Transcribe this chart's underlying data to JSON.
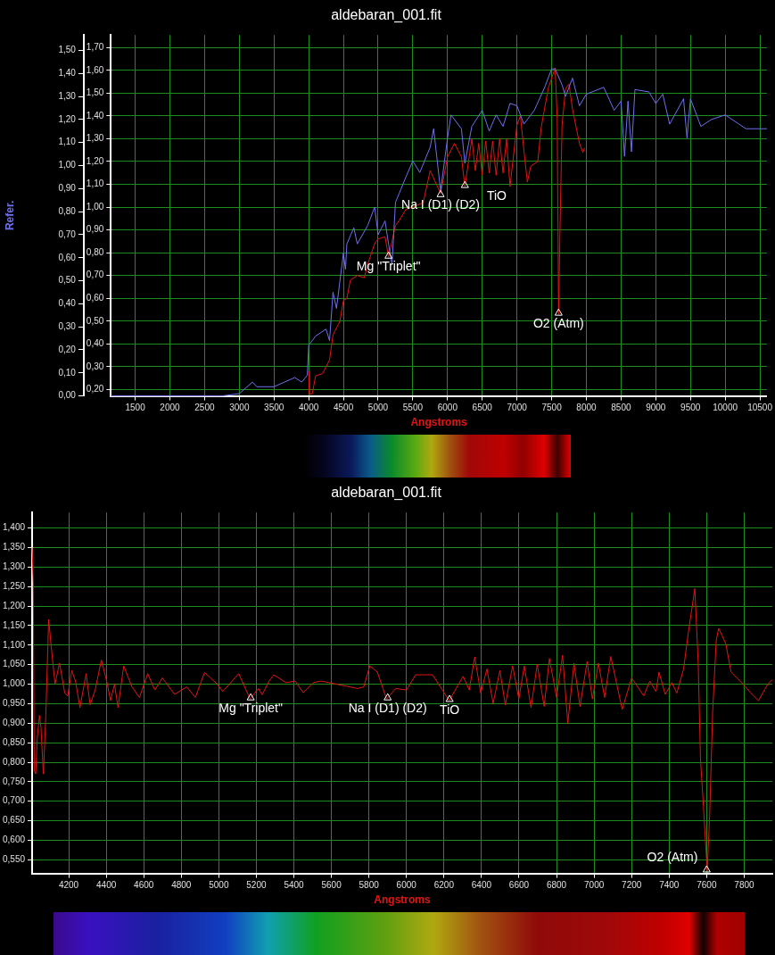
{
  "chart_data": [
    {
      "type": "line",
      "title": "aldebaran_001.fit",
      "xlabel": "Angstroms",
      "y2label": "Refer.",
      "grid": true,
      "xlim": [
        1150,
        10600
      ],
      "xticks": [
        1500,
        2000,
        2500,
        3000,
        3500,
        4000,
        4500,
        5000,
        5500,
        6000,
        6500,
        7000,
        7500,
        8000,
        8500,
        9000,
        9500,
        10000,
        10500
      ],
      "ylim": [
        0.172,
        1.755
      ],
      "yticks": [
        {
          "value": 0.2,
          "label": "0,20"
        },
        {
          "value": 0.3,
          "label": "0,30"
        },
        {
          "value": 0.4,
          "label": "0,40"
        },
        {
          "value": 0.5,
          "label": "0,50"
        },
        {
          "value": 0.6,
          "label": "0,60"
        },
        {
          "value": 0.7,
          "label": "0,70"
        },
        {
          "value": 0.8,
          "label": "0,80"
        },
        {
          "value": 0.9,
          "label": "0,90"
        },
        {
          "value": 1.0,
          "label": "1,00"
        },
        {
          "value": 1.1,
          "label": "1,10"
        },
        {
          "value": 1.2,
          "label": "1,20"
        },
        {
          "value": 1.3,
          "label": "1,30"
        },
        {
          "value": 1.4,
          "label": "1,40"
        },
        {
          "value": 1.5,
          "label": "1,50"
        },
        {
          "value": 1.6,
          "label": "1,60"
        },
        {
          "value": 1.7,
          "label": "1,70"
        }
      ],
      "y2lim": [
        0,
        1.567
      ],
      "y2ticks": [
        {
          "value": 0,
          "label": "0,00"
        },
        {
          "value": 0.1,
          "label": "0,10"
        },
        {
          "value": 0.2,
          "label": "0,20"
        },
        {
          "value": 0.3,
          "label": "0,30"
        },
        {
          "value": 0.4,
          "label": "0,40"
        },
        {
          "value": 0.5,
          "label": "0,50"
        },
        {
          "value": 0.6,
          "label": "0,60"
        },
        {
          "value": 0.7,
          "label": "0,70"
        },
        {
          "value": 0.8,
          "label": "0,80"
        },
        {
          "value": 0.9,
          "label": "0,90"
        },
        {
          "value": 1.0,
          "label": "1,00"
        },
        {
          "value": 1.1,
          "label": "1,10"
        },
        {
          "value": 1.2,
          "label": "1,20"
        },
        {
          "value": 1.3,
          "label": "1,30"
        },
        {
          "value": 1.4,
          "label": "1,40"
        },
        {
          "value": 1.5,
          "label": "1,50"
        }
      ],
      "series": [
        {
          "color": "#6f70f0",
          "axis": "y2",
          "x": [
            1150,
            2750,
            3000,
            3190,
            3250,
            3500,
            3650,
            3800,
            3900,
            3980,
            4000,
            4100,
            4250,
            4300,
            4350,
            4400,
            4500,
            4530,
            4550,
            4650,
            4700,
            4850,
            4950,
            5000,
            5100,
            5150,
            5200,
            5250,
            5400,
            5500,
            5600,
            5750,
            5800,
            5900,
            6000,
            6050,
            6200,
            6250,
            6350,
            6500,
            6600,
            6700,
            6800,
            6900,
            7000,
            7100,
            7250,
            7400,
            7500,
            7550,
            7650,
            7700,
            7800,
            7900,
            8000,
            8250,
            8400,
            8500,
            8550,
            8600,
            8650,
            8700,
            8900,
            9000,
            9100,
            9200,
            9400,
            9450,
            9500,
            9650,
            9800,
            10000,
            10200,
            10300,
            10600
          ],
          "values": [
            0.0,
            0.0,
            0.01,
            0.06,
            0.04,
            0.04,
            0.06,
            0.08,
            0.06,
            0.09,
            0.22,
            0.26,
            0.29,
            0.24,
            0.45,
            0.38,
            0.62,
            0.55,
            0.66,
            0.73,
            0.66,
            0.74,
            0.82,
            0.7,
            0.76,
            0.66,
            0.57,
            0.84,
            0.95,
            1.02,
            0.97,
            1.08,
            1.16,
            0.89,
            1.12,
            1.22,
            1.16,
            1.01,
            1.17,
            1.24,
            1.15,
            1.22,
            1.17,
            1.27,
            1.26,
            1.18,
            1.24,
            1.34,
            1.42,
            1.42,
            1.35,
            1.3,
            1.38,
            1.26,
            1.31,
            1.34,
            1.24,
            1.28,
            1.04,
            1.28,
            1.06,
            1.33,
            1.32,
            1.27,
            1.31,
            1.18,
            1.29,
            1.12,
            1.29,
            1.17,
            1.2,
            1.22,
            1.18,
            1.16,
            1.16
          ]
        },
        {
          "color": "#e01515",
          "x": [
            4000,
            4010,
            4050,
            4100,
            4200,
            4300,
            4350,
            4450,
            4500,
            4550,
            4600,
            4700,
            4800,
            4850,
            4950,
            5000,
            5100,
            5150,
            5250,
            5300,
            5400,
            5500,
            5650,
            5750,
            5900,
            6000,
            6100,
            6200,
            6250,
            6350,
            6400,
            6450,
            6500,
            6550,
            6600,
            6650,
            6700,
            6750,
            6800,
            6850,
            6900,
            7000,
            7050,
            7100,
            7150,
            7200,
            7300,
            7350,
            7450,
            7550,
            7580,
            7600,
            7620,
            7650,
            7700,
            7750,
            7800,
            7900,
            7950,
            7975
          ],
          "values": [
            0.28,
            0.18,
            0.18,
            0.26,
            0.27,
            0.33,
            0.44,
            0.5,
            0.59,
            0.6,
            0.68,
            0.7,
            0.69,
            0.75,
            0.84,
            0.86,
            0.87,
            0.78,
            0.92,
            0.94,
            0.99,
            1.0,
            1.02,
            1.16,
            1.06,
            1.22,
            1.28,
            1.22,
            1.09,
            1.3,
            1.16,
            1.28,
            1.14,
            1.29,
            1.15,
            1.29,
            1.14,
            1.3,
            1.15,
            1.3,
            1.09,
            1.36,
            1.4,
            1.25,
            1.11,
            1.18,
            1.2,
            1.35,
            1.52,
            1.61,
            1.39,
            0.53,
            0.9,
            1.36,
            1.52,
            1.54,
            1.43,
            1.28,
            1.24,
            1.26
          ]
        }
      ],
      "annotations": [
        {
          "text": "Mg \"Triplet\"",
          "x": 5150,
          "y": 0.78
        },
        {
          "text": "Na I (D1) (D2)",
          "x": 5900,
          "y": 1.05
        },
        {
          "text": "TiO",
          "x": 6250,
          "y": 1.09
        },
        {
          "text": "O2 (Atm)",
          "x": 7600,
          "y": 0.53
        }
      ]
    },
    {
      "type": "line",
      "title": "aldebaran_001.fit",
      "xlabel": "Angstroms",
      "grid": true,
      "xlim": [
        4005,
        7950
      ],
      "xticks": [
        4200,
        4400,
        4600,
        4800,
        5000,
        5200,
        5400,
        5600,
        5800,
        6000,
        6200,
        6400,
        6600,
        6800,
        7000,
        7200,
        7400,
        7600,
        7800
      ],
      "ylim": [
        0.515,
        1.44
      ],
      "yticks": [
        {
          "value": 0.55,
          "label": "0,550"
        },
        {
          "value": 0.6,
          "label": "0,600"
        },
        {
          "value": 0.65,
          "label": "0,650"
        },
        {
          "value": 0.7,
          "label": "0,700"
        },
        {
          "value": 0.75,
          "label": "0,750"
        },
        {
          "value": 0.8,
          "label": "0,800"
        },
        {
          "value": 0.85,
          "label": "0,850"
        },
        {
          "value": 0.9,
          "label": "0,900"
        },
        {
          "value": 0.95,
          "label": "0,950"
        },
        {
          "value": 1.0,
          "label": "1,000"
        },
        {
          "value": 1.05,
          "label": "1,050"
        },
        {
          "value": 1.1,
          "label": "1,100"
        },
        {
          "value": 1.15,
          "label": "1,150"
        },
        {
          "value": 1.2,
          "label": "1,200"
        },
        {
          "value": 1.25,
          "label": "1,250"
        },
        {
          "value": 1.3,
          "label": "1,300"
        },
        {
          "value": 1.35,
          "label": "1,350"
        },
        {
          "value": 1.4,
          "label": "1,400"
        }
      ],
      "series": [
        {
          "color": "#e01515",
          "x": [
            4005,
            4011,
            4016,
            4024,
            4032,
            4044,
            4052,
            4065,
            4078,
            4093,
            4106,
            4127,
            4151,
            4179,
            4195,
            4216,
            4236,
            4260,
            4293,
            4314,
            4341,
            4374,
            4406,
            4423,
            4444,
            4463,
            4493,
            4537,
            4577,
            4621,
            4659,
            4699,
            4764,
            4829,
            4875,
            4924,
            4992,
            5021,
            5106,
            5167,
            5211,
            5231,
            5268,
            5293,
            5358,
            5407,
            5450,
            5504,
            5545,
            5658,
            5740,
            5772,
            5805,
            5845,
            5894,
            5943,
            6000,
            6049,
            6139,
            6228,
            6302,
            6335,
            6364,
            6396,
            6429,
            6462,
            6498,
            6527,
            6566,
            6599,
            6628,
            6664,
            6697,
            6734,
            6762,
            6800,
            6832,
            6860,
            6893,
            6925,
            6963,
            6991,
            7023,
            7056,
            7089,
            7150,
            7200,
            7265,
            7297,
            7330,
            7346,
            7379,
            7415,
            7441,
            7477,
            7502,
            7537,
            7555,
            7567,
            7583,
            7603,
            7616,
            7632,
            7651,
            7664,
            7702,
            7730,
            7795,
            7836,
            7876,
            7926,
            7950
          ],
          "values": [
            1.35,
            1.26,
            0.78,
            0.77,
            0.86,
            0.92,
            0.89,
            0.77,
            0.92,
            1.166,
            1.1,
            1.0,
            1.054,
            0.977,
            0.97,
            1.035,
            1.008,
            0.94,
            1.027,
            0.947,
            0.985,
            1.062,
            1.0,
            0.958,
            1.0,
            0.94,
            1.047,
            0.993,
            0.966,
            1.027,
            0.985,
            1.016,
            0.974,
            0.993,
            0.966,
            1.03,
            1.0,
            0.981,
            1.027,
            0.962,
            0.989,
            0.973,
            1.008,
            1.024,
            1.004,
            1.008,
            0.978,
            1.004,
            1.008,
            0.997,
            0.989,
            0.993,
            1.047,
            1.031,
            0.962,
            0.989,
            0.985,
            1.024,
            1.024,
            0.958,
            1.02,
            0.985,
            1.07,
            0.977,
            1.039,
            0.951,
            1.035,
            0.947,
            1.047,
            0.962,
            1.047,
            0.94,
            1.051,
            0.943,
            1.066,
            0.966,
            1.074,
            0.9,
            1.054,
            0.943,
            1.058,
            0.962,
            1.054,
            0.966,
            1.071,
            0.935,
            1.016,
            0.97,
            1.008,
            0.981,
            1.031,
            0.974,
            1.004,
            0.977,
            1.039,
            1.131,
            1.245,
            1.054,
            0.809,
            0.686,
            0.521,
            0.663,
            0.93,
            1.112,
            1.143,
            1.104,
            1.031,
            1.0,
            0.977,
            0.958,
            1.0,
            1.012
          ]
        }
      ],
      "annotations": [
        {
          "text": "Mg \"Triplet\"",
          "x": 5170,
          "y": 0.962
        },
        {
          "text": "Na I (D1) (D2)",
          "x": 5900,
          "y": 0.962
        },
        {
          "text": "TiO",
          "x": 6230,
          "y": 0.958
        },
        {
          "text": "O2 (Atm)",
          "x": 7600,
          "y": 0.521
        }
      ]
    }
  ]
}
